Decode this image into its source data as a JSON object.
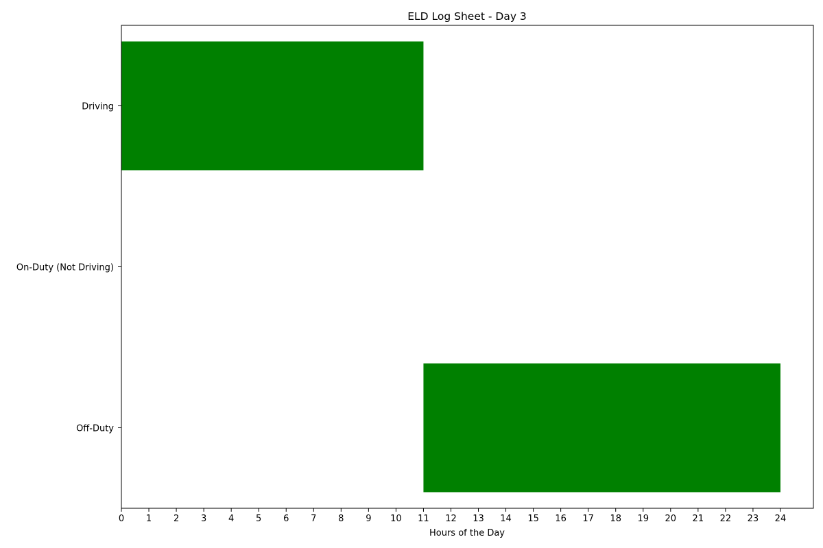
{
  "chart_data": {
    "type": "bar",
    "orientation": "horizontal",
    "title": "ELD Log Sheet - Day 3",
    "xlabel": "Hours of the Day",
    "ylabel": "",
    "categories": [
      "Driving",
      "On-Duty (Not Driving)",
      "Off-Duty"
    ],
    "segments": [
      {
        "category": "Driving",
        "start": 0,
        "end": 11
      },
      {
        "category": "Off-Duty",
        "start": 11,
        "end": 24
      }
    ],
    "xlim": [
      0,
      25.2
    ],
    "xticks": [
      0,
      1,
      2,
      3,
      4,
      5,
      6,
      7,
      8,
      9,
      10,
      11,
      12,
      13,
      14,
      15,
      16,
      17,
      18,
      19,
      20,
      21,
      22,
      23,
      24
    ],
    "bar_color": "#008000",
    "grid": false,
    "legend": "none"
  }
}
